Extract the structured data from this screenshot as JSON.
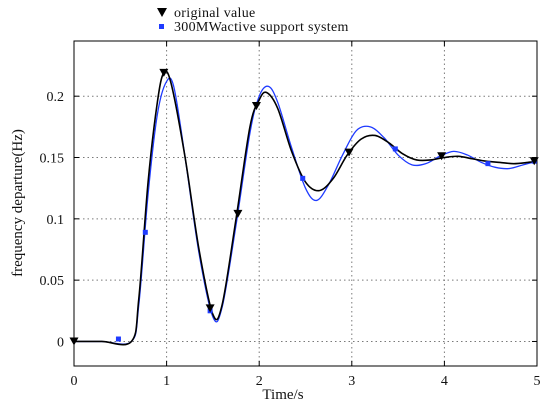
{
  "chart_data": {
    "type": "line",
    "title": "",
    "xlabel": "Time/s",
    "ylabel": "frequency departure(Hz)",
    "xlim": [
      0,
      5
    ],
    "ylim": [
      -0.02,
      0.245
    ],
    "xticks": [
      0,
      1,
      2,
      3,
      4,
      5
    ],
    "xtick_labels": [
      "0",
      "1",
      "2",
      "3",
      "4",
      "5"
    ],
    "yticks": [
      0,
      0.05,
      0.1,
      0.15,
      0.2
    ],
    "ytick_labels": [
      "0",
      "0.05",
      "0.1",
      "0.15",
      "0.2"
    ],
    "grid": true,
    "legend_position": "top",
    "series": [
      {
        "name": "original value",
        "color": "#000000",
        "marker": "triangle-down",
        "x": [
          0,
          0.3,
          0.62,
          0.7,
          0.8,
          0.9,
          0.97,
          1.05,
          1.2,
          1.35,
          1.5,
          1.6,
          1.75,
          1.9,
          2.0,
          2.08,
          2.2,
          2.35,
          2.5,
          2.65,
          2.8,
          2.95,
          3.1,
          3.25,
          3.4,
          3.55,
          3.7,
          3.85,
          4.0,
          4.15,
          4.3,
          4.45,
          4.6,
          4.75,
          4.9,
          5.0
        ],
        "values": [
          0,
          0,
          0,
          0.035,
          0.13,
          0.195,
          0.219,
          0.21,
          0.15,
          0.075,
          0.022,
          0.03,
          0.1,
          0.175,
          0.197,
          0.203,
          0.19,
          0.155,
          0.13,
          0.123,
          0.133,
          0.152,
          0.165,
          0.168,
          0.162,
          0.153,
          0.148,
          0.148,
          0.15,
          0.151,
          0.149,
          0.147,
          0.146,
          0.145,
          0.146,
          0.147
        ],
        "marker_x": [
          0,
          0.97,
          1.47,
          1.77,
          1.97,
          2.97,
          3.97,
          4.97
        ],
        "marker_y": [
          0,
          0.219,
          0.027,
          0.104,
          0.192,
          0.154,
          0.151,
          0.147
        ]
      },
      {
        "name": "300MWactive support system",
        "color": "#1f3bff",
        "marker": "square",
        "x": [
          0,
          0.3,
          0.62,
          0.7,
          0.8,
          0.9,
          1.0,
          1.08,
          1.2,
          1.35,
          1.5,
          1.6,
          1.75,
          1.9,
          2.0,
          2.1,
          2.2,
          2.35,
          2.5,
          2.62,
          2.75,
          2.9,
          3.05,
          3.2,
          3.35,
          3.5,
          3.65,
          3.8,
          3.95,
          4.1,
          4.25,
          4.4,
          4.55,
          4.7,
          4.85,
          5.0
        ],
        "values": [
          0,
          0,
          0,
          0.03,
          0.12,
          0.185,
          0.212,
          0.207,
          0.15,
          0.072,
          0.02,
          0.028,
          0.095,
          0.17,
          0.2,
          0.208,
          0.195,
          0.158,
          0.125,
          0.115,
          0.128,
          0.152,
          0.172,
          0.175,
          0.166,
          0.152,
          0.144,
          0.145,
          0.151,
          0.155,
          0.152,
          0.146,
          0.142,
          0.141,
          0.144,
          0.147
        ],
        "marker_x": [
          0.48,
          0.77,
          1.47,
          2.47,
          3.47,
          4.47,
          4.97
        ],
        "marker_y": [
          0.002,
          0.089,
          0.025,
          0.133,
          0.157,
          0.145,
          0.147
        ]
      }
    ]
  }
}
